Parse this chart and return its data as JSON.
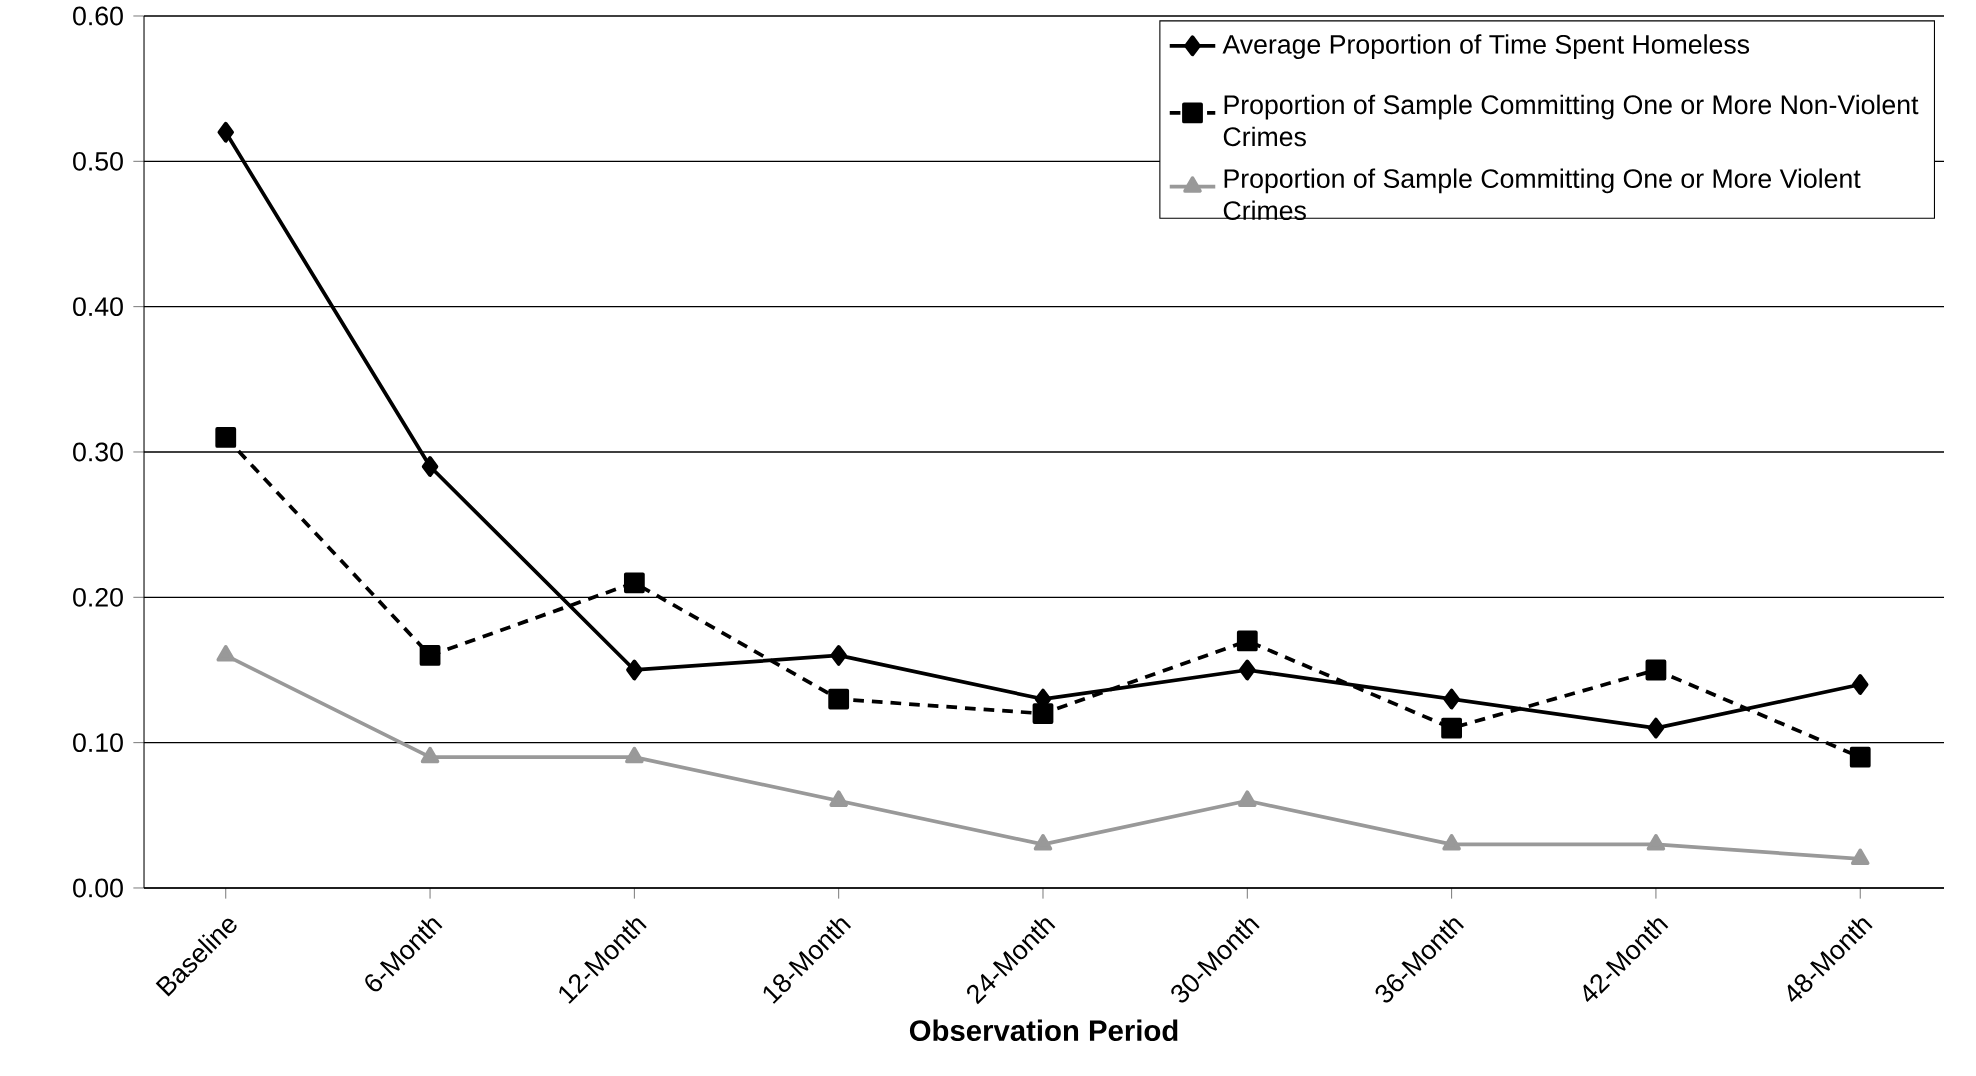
{
  "chart_data": {
    "type": "line",
    "xlabel": "Observation Period",
    "categories": [
      "Baseline",
      "6-Month",
      "12-Month",
      "18-Month",
      "24-Month",
      "30-Month",
      "36-Month",
      "42-Month",
      "48-Month"
    ],
    "ylim": [
      0,
      0.6
    ],
    "yticks": [
      {
        "value": 0,
        "label": "0.00"
      },
      {
        "value": 0.1,
        "label": "0.10"
      },
      {
        "value": 0.2,
        "label": "0.20"
      },
      {
        "value": 0.3,
        "label": "0.30"
      },
      {
        "value": 0.4,
        "label": "0.40"
      },
      {
        "value": 0.5,
        "label": "0.50"
      },
      {
        "value": 0.6,
        "label": "0.60"
      }
    ],
    "grid": "y",
    "legend": "top right",
    "series": [
      {
        "name": "Average Proportion of Time Spent Homeless",
        "color": "#000000",
        "marker": "diamond",
        "line_style": "solid",
        "values": [
          0.52,
          0.29,
          0.15,
          0.16,
          0.13,
          0.15,
          0.13,
          0.11,
          0.14
        ]
      },
      {
        "name": "Proportion of Sample Committing One or More Non-Violent Crimes",
        "color": "#000000",
        "marker": "square",
        "line_style": "dashed",
        "values": [
          0.31,
          0.16,
          0.21,
          0.13,
          0.12,
          0.17,
          0.11,
          0.15,
          0.09
        ]
      },
      {
        "name": "Proportion of Sample Committing One or More Violent Crimes",
        "color": "#999999",
        "marker": "triangle",
        "line_style": "solid",
        "values": [
          0.16,
          0.09,
          0.09,
          0.06,
          0.03,
          0.06,
          0.03,
          0.03,
          0.02
        ]
      }
    ]
  }
}
